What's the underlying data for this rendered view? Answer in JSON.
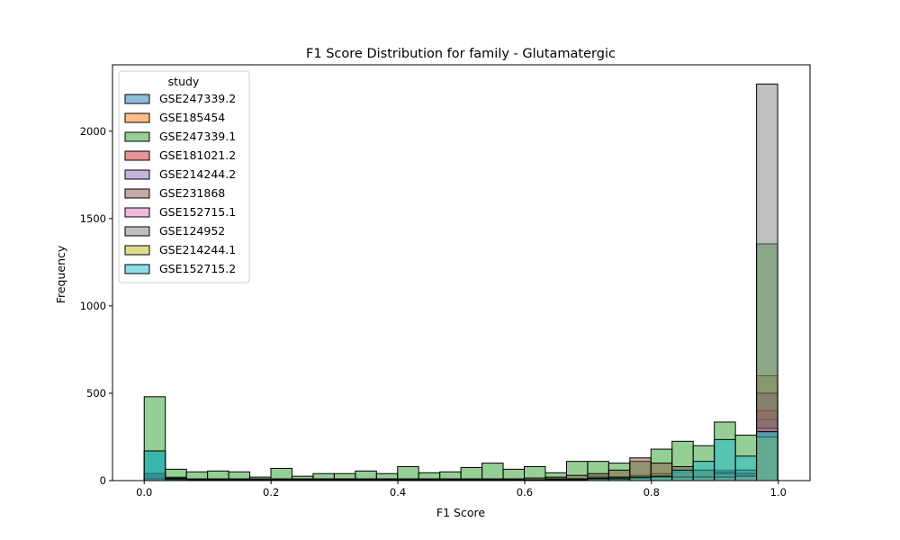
{
  "chart_data": {
    "type": "bar",
    "title": "F1 Score Distribution for family - Glutamatergic",
    "xlabel": "F1 Score",
    "ylabel": "Frequency",
    "xlim": [
      -0.05,
      1.05
    ],
    "ylim": [
      0,
      2380
    ],
    "xticks": [
      0.0,
      0.2,
      0.4,
      0.6,
      0.8,
      1.0
    ],
    "xtick_labels": [
      "0.0",
      "0.2",
      "0.4",
      "0.6",
      "0.8",
      "1.0"
    ],
    "yticks": [
      0,
      500,
      1000,
      1500,
      2000
    ],
    "ytick_labels": [
      "0",
      "500",
      "1000",
      "1500",
      "2000"
    ],
    "bin_width": 0.0333,
    "bins_start": 0.0,
    "legend": {
      "title": "study",
      "position": "upper left"
    },
    "series": [
      {
        "name": "GSE247339.2",
        "color": "#1f77b4",
        "values": [
          170,
          20,
          5,
          5,
          5,
          5,
          5,
          5,
          5,
          5,
          5,
          5,
          5,
          5,
          5,
          5,
          5,
          5,
          5,
          10,
          5,
          25,
          15,
          15,
          20,
          20,
          20,
          20,
          30,
          275
        ]
      },
      {
        "name": "GSE185454",
        "color": "#ff7f0e",
        "values": [
          20,
          10,
          5,
          5,
          5,
          5,
          5,
          5,
          5,
          5,
          5,
          5,
          5,
          5,
          5,
          5,
          5,
          5,
          5,
          10,
          10,
          15,
          20,
          30,
          40,
          50,
          60,
          60,
          60,
          600
        ]
      },
      {
        "name": "GSE247339.1",
        "color": "#2ca02c",
        "values": [
          480,
          65,
          50,
          55,
          50,
          20,
          70,
          25,
          40,
          40,
          55,
          40,
          80,
          45,
          50,
          75,
          100,
          65,
          80,
          45,
          110,
          110,
          100,
          110,
          180,
          225,
          200,
          335,
          260,
          1355
        ]
      },
      {
        "name": "GSE181021.2",
        "color": "#d62728",
        "values": [
          10,
          5,
          5,
          5,
          5,
          5,
          5,
          5,
          5,
          5,
          5,
          5,
          5,
          5,
          5,
          5,
          5,
          5,
          5,
          5,
          5,
          10,
          10,
          15,
          20,
          20,
          20,
          20,
          30,
          400
        ]
      },
      {
        "name": "GSE214244.2",
        "color": "#9467bd",
        "values": [
          15,
          5,
          5,
          5,
          5,
          5,
          5,
          5,
          5,
          5,
          5,
          5,
          5,
          5,
          5,
          5,
          5,
          5,
          5,
          5,
          5,
          10,
          10,
          15,
          15,
          20,
          20,
          20,
          25,
          350
        ]
      },
      {
        "name": "GSE231868",
        "color": "#8c564b",
        "values": [
          30,
          15,
          10,
          10,
          10,
          10,
          10,
          10,
          10,
          10,
          10,
          10,
          10,
          10,
          10,
          10,
          10,
          10,
          15,
          20,
          30,
          40,
          60,
          130,
          100,
          80,
          60,
          50,
          60,
          500
        ]
      },
      {
        "name": "GSE152715.1",
        "color": "#e377c2",
        "values": [
          20,
          5,
          5,
          5,
          5,
          5,
          5,
          5,
          5,
          5,
          5,
          5,
          5,
          5,
          5,
          5,
          5,
          5,
          5,
          5,
          10,
          10,
          15,
          15,
          20,
          20,
          20,
          20,
          25,
          300
        ]
      },
      {
        "name": "GSE124952",
        "color": "#7f7f7f",
        "values": [
          40,
          10,
          5,
          5,
          5,
          5,
          5,
          5,
          5,
          5,
          5,
          5,
          5,
          5,
          5,
          5,
          5,
          5,
          5,
          10,
          10,
          15,
          20,
          20,
          20,
          20,
          20,
          40,
          40,
          2270
        ]
      },
      {
        "name": "GSE214244.1",
        "color": "#bcbd22",
        "values": [
          10,
          5,
          5,
          5,
          5,
          5,
          5,
          5,
          5,
          5,
          5,
          5,
          5,
          5,
          5,
          5,
          5,
          5,
          5,
          5,
          5,
          10,
          10,
          15,
          20,
          20,
          20,
          20,
          25,
          250
        ]
      },
      {
        "name": "GSE152715.2",
        "color": "#17becf",
        "values": [
          170,
          10,
          5,
          5,
          5,
          5,
          5,
          5,
          5,
          5,
          5,
          5,
          5,
          5,
          5,
          5,
          5,
          5,
          5,
          5,
          5,
          10,
          10,
          20,
          25,
          60,
          110,
          235,
          140,
          280
        ]
      }
    ]
  }
}
